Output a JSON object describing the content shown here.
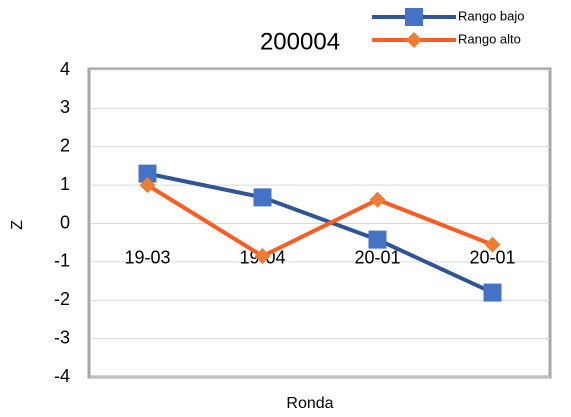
{
  "chart_data": {
    "type": "line",
    "title": "200004",
    "x_label": "Ronda",
    "y_label": "Z",
    "categories": [
      "19-03",
      "19-04",
      "20-01",
      "20-01"
    ],
    "series": [
      {
        "name": "Rango bajo",
        "color": "#2f5597",
        "marker_color": "#4472c4",
        "marker": "square",
        "values": [
          1.3,
          0.68,
          -0.42,
          -1.8
        ]
      },
      {
        "name": "Rango alto",
        "color": "#ff5a1f",
        "marker_color": "#ed7d31",
        "marker": "diamond",
        "values": [
          1.0,
          -0.85,
          0.62,
          -0.55
        ]
      }
    ],
    "ylim": [
      -4,
      4
    ],
    "yticks": [
      -4,
      -3,
      -2,
      -1,
      0,
      1,
      2,
      3,
      4
    ],
    "grid": true,
    "legend": "top-right"
  }
}
